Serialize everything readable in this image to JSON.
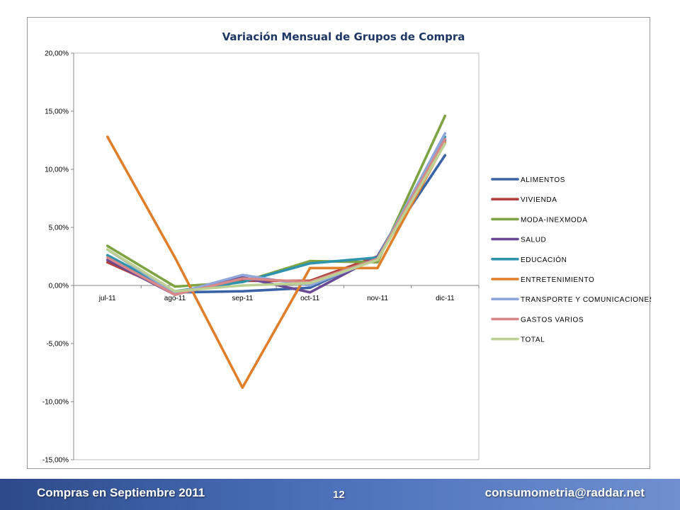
{
  "chart_data": {
    "type": "line",
    "title": "Variación Mensual de Grupos de Compra",
    "categories": [
      "jul-11",
      "ago-11",
      "sep-11",
      "oct-11",
      "nov-11",
      "dic-11"
    ],
    "ylim": [
      -15,
      20
    ],
    "yticks": [
      20,
      15,
      10,
      5,
      0,
      -5,
      -10,
      -15
    ],
    "ytick_labels": [
      "20,00%",
      "15,00%",
      "10,00%",
      "5,00%",
      "0,00%",
      "-5,00%",
      "-10,00%",
      "-15,00%"
    ],
    "grid": false,
    "legend": "right",
    "series": [
      {
        "name": "ALIMENTOS",
        "color": "#3a63a5",
        "values": [
          2.6,
          -0.6,
          -0.5,
          -0.2,
          2.5,
          11.2
        ]
      },
      {
        "name": "VIVIENDA",
        "color": "#b0413e",
        "values": [
          2.0,
          -0.6,
          0.4,
          0.4,
          2.5,
          12.5
        ]
      },
      {
        "name": "MODA-INEXMODA",
        "color": "#7ea342",
        "values": [
          3.4,
          -0.1,
          0.3,
          2.1,
          2.0,
          14.6
        ]
      },
      {
        "name": "SALUD",
        "color": "#6a4a93",
        "values": [
          2.2,
          -0.8,
          0.7,
          -0.6,
          2.5,
          12.5
        ]
      },
      {
        "name": "EDUCACIÓN",
        "color": "#2f93ad",
        "values": [
          2.6,
          -0.5,
          0.3,
          1.9,
          2.4,
          12.8
        ]
      },
      {
        "name": "ENTRETENIMIENTO",
        "color": "#e07f2b",
        "values": [
          12.8,
          2.4,
          -8.8,
          1.5,
          1.5,
          12.3
        ]
      },
      {
        "name": "TRANSPORTE Y COMUNICACIONES",
        "color": "#8ea6d9",
        "values": [
          3.1,
          -0.7,
          0.9,
          0.0,
          2.3,
          13.1
        ]
      },
      {
        "name": "GASTOS VARIOS",
        "color": "#d88888",
        "values": [
          2.4,
          -0.8,
          0.6,
          0.3,
          2.3,
          12.6
        ]
      },
      {
        "name": "TOTAL",
        "color": "#bcd092",
        "values": [
          3.1,
          -0.5,
          0.0,
          0.2,
          2.2,
          12.2
        ]
      }
    ]
  },
  "footer": {
    "left": "Compras en Septiembre 2011",
    "page": "12",
    "right": "consumometria@raddar.net"
  }
}
